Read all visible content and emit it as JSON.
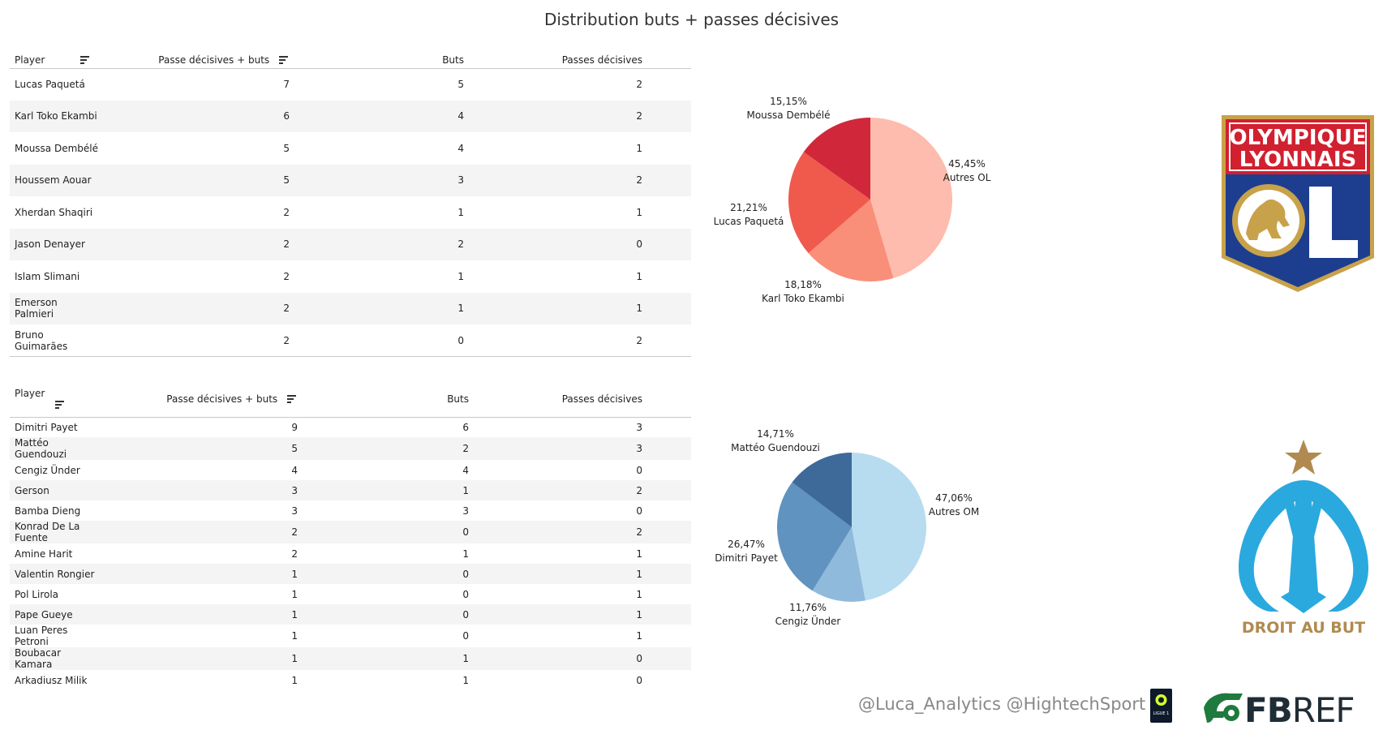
{
  "title": "Distribution buts + passes décisives",
  "columns": {
    "player": "Player",
    "total": "Passe décisives + buts",
    "goals": "Buts",
    "assists": "Passes décisives"
  },
  "ol_table": [
    {
      "player": "Lucas Paquetá",
      "total": "7",
      "goals": "5",
      "assists": "2"
    },
    {
      "player": "Karl Toko Ekambi",
      "total": "6",
      "goals": "4",
      "assists": "2"
    },
    {
      "player": "Moussa Dembélé",
      "total": "5",
      "goals": "4",
      "assists": "1"
    },
    {
      "player": "Houssem Aouar",
      "total": "5",
      "goals": "3",
      "assists": "2"
    },
    {
      "player": "Xherdan Shaqiri",
      "total": "2",
      "goals": "1",
      "assists": "1"
    },
    {
      "player": "Jason Denayer",
      "total": "2",
      "goals": "2",
      "assists": "0"
    },
    {
      "player": "Islam Slimani",
      "total": "2",
      "goals": "1",
      "assists": "1"
    },
    {
      "player": "Emerson Palmieri",
      "total": "2",
      "goals": "1",
      "assists": "1"
    },
    {
      "player": "Bruno Guimarães",
      "total": "2",
      "goals": "0",
      "assists": "2"
    }
  ],
  "om_table": [
    {
      "player": "Dimitri Payet",
      "total": "9",
      "goals": "6",
      "assists": "3"
    },
    {
      "player": "Mattéo Guendouzi",
      "total": "5",
      "goals": "2",
      "assists": "3"
    },
    {
      "player": "Cengiz Ünder",
      "total": "4",
      "goals": "4",
      "assists": "0"
    },
    {
      "player": "Gerson",
      "total": "3",
      "goals": "1",
      "assists": "2"
    },
    {
      "player": "Bamba Dieng",
      "total": "3",
      "goals": "3",
      "assists": "0"
    },
    {
      "player": "Konrad De La Fuente",
      "total": "2",
      "goals": "0",
      "assists": "2"
    },
    {
      "player": "Amine Harit",
      "total": "2",
      "goals": "1",
      "assists": "1"
    },
    {
      "player": "Valentin Rongier",
      "total": "1",
      "goals": "0",
      "assists": "1"
    },
    {
      "player": "Pol Lirola",
      "total": "1",
      "goals": "0",
      "assists": "1"
    },
    {
      "player": "Pape Gueye",
      "total": "1",
      "goals": "0",
      "assists": "1"
    },
    {
      "player": "Luan Peres Petroni",
      "total": "1",
      "goals": "0",
      "assists": "1"
    },
    {
      "player": "Boubacar Kamara",
      "total": "1",
      "goals": "1",
      "assists": "0"
    },
    {
      "player": "Arkadiusz Milik",
      "total": "1",
      "goals": "1",
      "assists": "0"
    }
  ],
  "chart_data": [
    {
      "type": "pie",
      "title": "Olympique Lyonnais",
      "slices": [
        {
          "label": "Autres OL",
          "pct_label": "45,45%",
          "value": 45.45,
          "color": "#fdbcad"
        },
        {
          "label": "Karl Toko Ekambi",
          "pct_label": "18,18%",
          "value": 18.18,
          "color": "#f98e79"
        },
        {
          "label": "Lucas Paquetá",
          "pct_label": "21,21%",
          "value": 21.21,
          "color": "#ef5a4d"
        },
        {
          "label": "Moussa Dembélé",
          "pct_label": "15,15%",
          "value": 15.15,
          "color": "#d0283a"
        }
      ]
    },
    {
      "type": "pie",
      "title": "Olympique de Marseille",
      "slices": [
        {
          "label": "Autres OM",
          "pct_label": "47,06%",
          "value": 47.06,
          "color": "#b7dcf0"
        },
        {
          "label": "Cengiz Ünder",
          "pct_label": "11,76%",
          "value": 11.76,
          "color": "#8fbadc"
        },
        {
          "label": "Dimitri Payet",
          "pct_label": "26,47%",
          "value": 26.47,
          "color": "#6093bf"
        },
        {
          "label": "Mattéo Guendouzi",
          "pct_label": "14,71%",
          "value": 14.71,
          "color": "#3e6a9a"
        }
      ]
    }
  ],
  "logos": {
    "ol_line1": "OLYMPIQUE",
    "ol_line2": "LYONNAIS",
    "om_motto": "DROIT AU BUT",
    "ligue1": "LIGUE 1",
    "fbref_fb": "FB",
    "fbref_ref": "REF"
  },
  "credits": "@Luca_Analytics @HightechSport",
  "colors": {
    "ol_red": "#d1202f",
    "ol_blue": "#1d3e8f",
    "ol_gold": "#c8a24a",
    "om_blue": "#2aa9de",
    "om_gold": "#b08a50",
    "fbref_green": "#1f7a3d"
  }
}
